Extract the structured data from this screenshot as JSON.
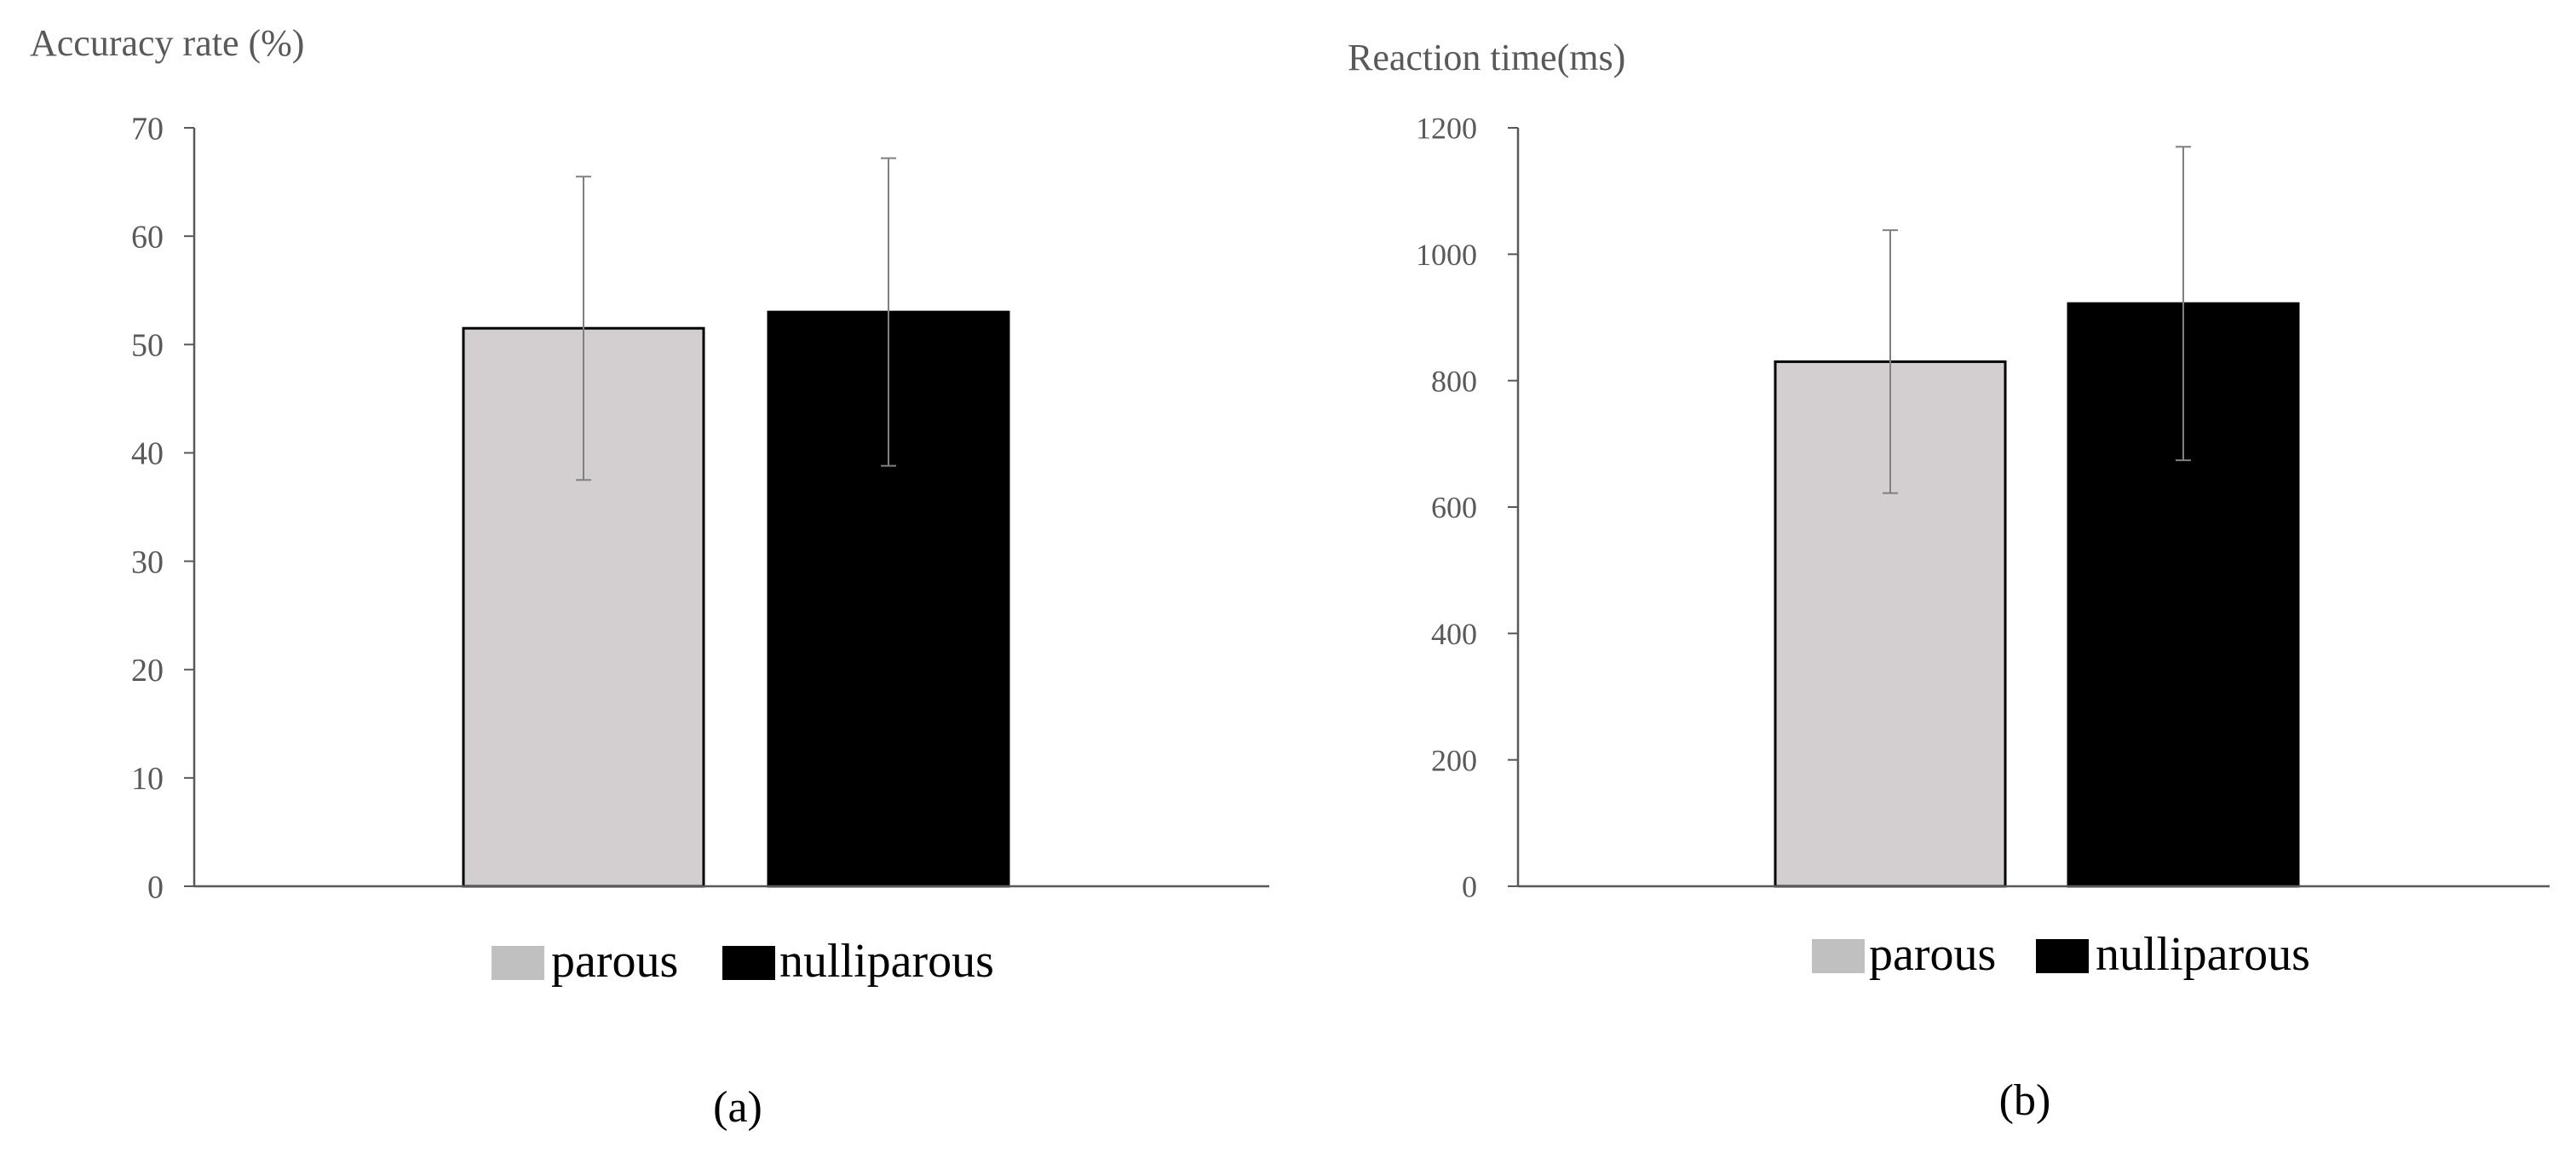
{
  "chart_data": [
    {
      "type": "bar",
      "ylabel": "Accuracy rate (%)",
      "ylim": [
        0,
        70
      ],
      "yticks": [
        0,
        10,
        20,
        30,
        40,
        50,
        60,
        70
      ],
      "series": [
        {
          "name": "parous",
          "value": 51.5,
          "error": 14.0,
          "color": "#d3cfd0"
        },
        {
          "name": "nulliparous",
          "value": 53.0,
          "error": 14.2,
          "color": "#000000"
        }
      ],
      "legend": {
        "position": "bottom",
        "items": [
          "parous",
          "nulliparous"
        ],
        "colors": [
          "#c0c0c0",
          "#000000"
        ]
      },
      "grid": false,
      "caption": "(a)"
    },
    {
      "type": "bar",
      "ylabel": "Reaction time(ms)",
      "ylim": [
        0,
        1200
      ],
      "yticks": [
        0,
        200,
        400,
        600,
        800,
        1000,
        1200
      ],
      "series": [
        {
          "name": "parous",
          "value": 830,
          "error": 208,
          "color": "#d3cfd0"
        },
        {
          "name": "nulliparous",
          "value": 922,
          "error": 248,
          "color": "#000000"
        }
      ],
      "legend": {
        "position": "bottom",
        "items": [
          "parous",
          "nulliparous"
        ],
        "colors": [
          "#c0c0c0",
          "#000000"
        ]
      },
      "grid": false,
      "caption": "(b)"
    }
  ]
}
